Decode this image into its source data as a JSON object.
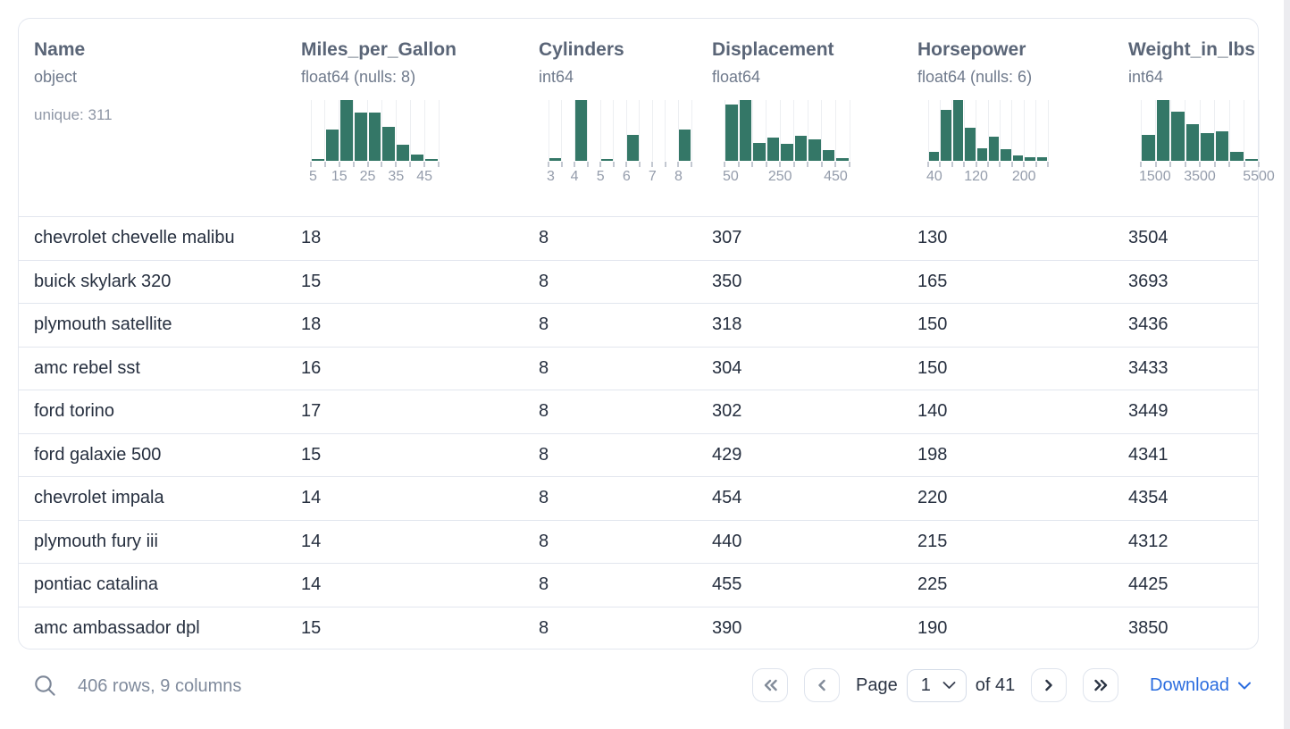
{
  "colors": {
    "histogram_bar": "#347767",
    "download_link": "#2a6cdf",
    "pager_enabled": "#2b3444",
    "pager_disabled": "#828b99"
  },
  "table": {
    "columns": [
      {
        "name": "Name",
        "type": "object",
        "meta": "unique: 311"
      },
      {
        "name": "Miles_per_Gallon",
        "type": "float64 (nulls: 8)"
      },
      {
        "name": "Cylinders",
        "type": "int64"
      },
      {
        "name": "Displacement",
        "type": "float64"
      },
      {
        "name": "Horsepower",
        "type": "float64 (nulls: 6)"
      },
      {
        "name": "Weight_in_lbs",
        "type": "int64"
      }
    ],
    "rows": [
      [
        "chevrolet chevelle malibu",
        "18",
        "8",
        "307",
        "130",
        "3504"
      ],
      [
        "buick skylark 320",
        "15",
        "8",
        "350",
        "165",
        "3693"
      ],
      [
        "plymouth satellite",
        "18",
        "8",
        "318",
        "150",
        "3436"
      ],
      [
        "amc rebel sst",
        "16",
        "8",
        "304",
        "150",
        "3433"
      ],
      [
        "ford torino",
        "17",
        "8",
        "302",
        "140",
        "3449"
      ],
      [
        "ford galaxie 500",
        "15",
        "8",
        "429",
        "198",
        "4341"
      ],
      [
        "chevrolet impala",
        "14",
        "8",
        "454",
        "220",
        "4354"
      ],
      [
        "plymouth fury iii",
        "14",
        "8",
        "440",
        "215",
        "4312"
      ],
      [
        "pontiac catalina",
        "14",
        "8",
        "455",
        "225",
        "4425"
      ],
      [
        "amc ambassador dpl",
        "15",
        "8",
        "390",
        "190",
        "3850"
      ]
    ]
  },
  "chart_data": [
    {
      "type": "bar",
      "subtype": "histogram",
      "column": "Miles_per_Gallon",
      "bin_start": 5,
      "bin_end": 50,
      "bin_count": 9,
      "rel_heights": [
        0.03,
        0.52,
        1.0,
        0.8,
        0.8,
        0.56,
        0.27,
        0.1,
        0.03
      ],
      "x_tick_labels": [
        "5",
        "15",
        "25",
        "35",
        "45"
      ],
      "x_tick_boundary_idx": [
        0,
        2,
        4,
        6,
        8
      ]
    },
    {
      "type": "bar",
      "subtype": "histogram",
      "column": "Cylinders",
      "bin_start": 3,
      "bin_end": 8.5,
      "bin_count": 11,
      "rel_heights": [
        0.04,
        0,
        1.0,
        0,
        0.03,
        0,
        0.42,
        0,
        0,
        0,
        0.52
      ],
      "x_tick_labels": [
        "3",
        "4",
        "5",
        "6",
        "7",
        "8"
      ],
      "x_tick_boundary_idx": [
        0,
        2,
        4,
        6,
        8,
        10
      ]
    },
    {
      "type": "bar",
      "subtype": "histogram",
      "column": "Displacement",
      "bin_start": 50,
      "bin_end": 500,
      "bin_count": 9,
      "rel_heights": [
        0.92,
        1.0,
        0.3,
        0.38,
        0.28,
        0.41,
        0.35,
        0.17,
        0.05
      ],
      "x_tick_labels": [
        "50",
        "250",
        "450"
      ],
      "x_tick_boundary_idx": [
        0,
        4,
        8
      ]
    },
    {
      "type": "bar",
      "subtype": "histogram",
      "column": "Horsepower",
      "bin_start": 40,
      "bin_end": 240,
      "bin_count": 10,
      "rel_heights": [
        0.14,
        0.84,
        1.0,
        0.54,
        0.2,
        0.4,
        0.19,
        0.09,
        0.06,
        0.06
      ],
      "x_tick_labels": [
        "40",
        "120",
        "200"
      ],
      "x_tick_boundary_idx": [
        0,
        4,
        8
      ]
    },
    {
      "type": "bar",
      "subtype": "histogram",
      "column": "Weight_in_lbs",
      "bin_start": 1500,
      "bin_end": 5500,
      "bin_count": 8,
      "rel_heights": [
        0.42,
        1.0,
        0.81,
        0.6,
        0.45,
        0.48,
        0.15,
        0.02
      ],
      "x_tick_labels": [
        "1500",
        "3500",
        "5500"
      ],
      "x_tick_boundary_idx": [
        0,
        4,
        8
      ]
    }
  ],
  "footer": {
    "summary": "406 rows, 9 columns",
    "page_label": "Page",
    "page_value": "1",
    "of_label": "of 41",
    "download_label": "Download"
  }
}
